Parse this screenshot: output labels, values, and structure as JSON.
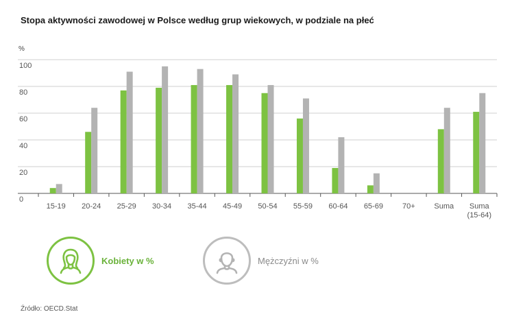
{
  "title": "Stopa aktywności zawodowej w Polsce według grup wiekowych, w podziale na płeć",
  "source": "Źródło: OECD.Stat",
  "colors": {
    "women": "#7dc242",
    "men": "#b3b3b3",
    "grid": "#cfcfcf",
    "axis": "#555555"
  },
  "legend": {
    "women": {
      "label": "Kobiety w %",
      "icon": "woman-icon"
    },
    "men": {
      "label": "Mężczyźni w %",
      "icon": "man-icon"
    }
  },
  "chart_data": {
    "type": "bar",
    "unit_label": "%",
    "categories": [
      "15-19",
      "20-24",
      "25-29",
      "30-34",
      "35-44",
      "45-49",
      "50-54",
      "55-59",
      "60-64",
      "65-69",
      "70+",
      "Suma",
      "Suma\n(15-64)"
    ],
    "series": [
      {
        "name": "Kobiety w %",
        "values": [
          4,
          46,
          77,
          79,
          81,
          81,
          75,
          56,
          19,
          6,
          0,
          48,
          61
        ]
      },
      {
        "name": "Mężczyźni w %",
        "values": [
          7,
          64,
          91,
          95,
          93,
          89,
          81,
          71,
          42,
          15,
          0,
          64,
          75
        ]
      }
    ],
    "ylim": [
      0,
      100
    ],
    "yticks": [
      0,
      20,
      40,
      60,
      80,
      100
    ],
    "grid": true,
    "legend_position": "bottom-left"
  }
}
